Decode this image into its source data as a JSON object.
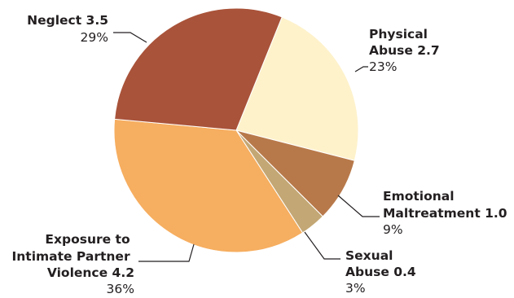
{
  "chart_data": {
    "type": "pie",
    "unit": "",
    "slices": [
      {
        "name_lines": [
          "Physical",
          "Abuse 2.7"
        ],
        "value": 2.7,
        "percent_label": "23%",
        "color": "#fef2cb"
      },
      {
        "name_lines": [
          "Emotional",
          "Maltreatment 1.0"
        ],
        "value": 1.0,
        "percent_label": "9%",
        "color": "#b8794a"
      },
      {
        "name_lines": [
          "Sexual",
          "Abuse 0.4"
        ],
        "value": 0.4,
        "percent_label": "3%",
        "color": "#c3a774"
      },
      {
        "name_lines": [
          "Exposure to",
          "Intimate Partner",
          "Violence 4.2"
        ],
        "value": 4.2,
        "percent_label": "36%",
        "color": "#f6ae60"
      },
      {
        "name_lines": [
          "Neglect 3.5"
        ],
        "value": 3.5,
        "percent_label": "29%",
        "color": "#a9533a"
      }
    ]
  }
}
